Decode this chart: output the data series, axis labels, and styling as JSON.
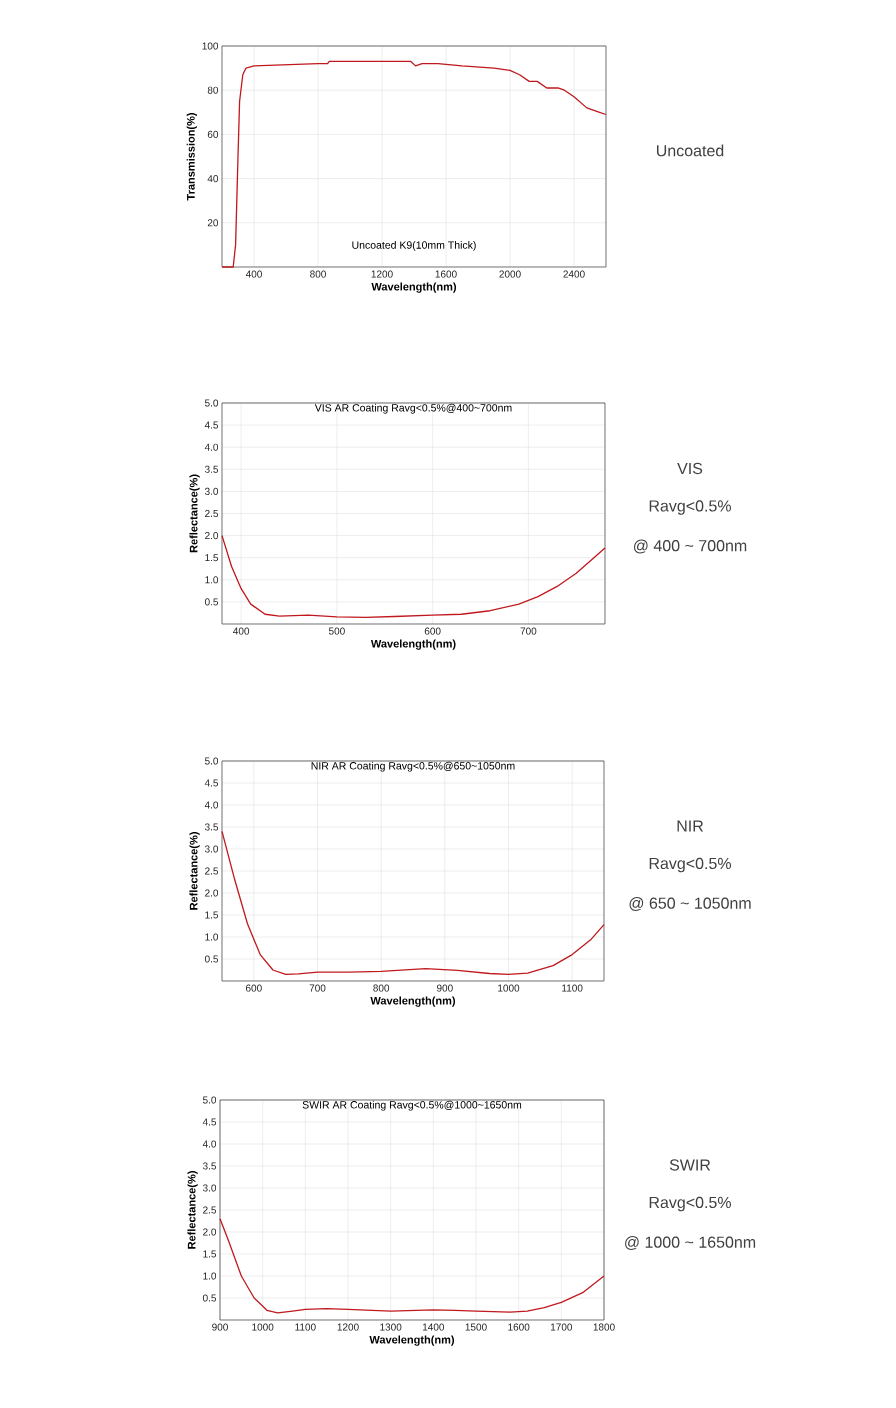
{
  "chart_data": [
    {
      "type": "line",
      "title": "Uncoated K9(10mm Thick)",
      "xlabel": "Wavelength(nm)",
      "ylabel": "Transmission(%)",
      "annotations": [
        "Uncoated"
      ],
      "color": "#c0181d",
      "grid": true,
      "xlim": [
        200,
        2600
      ],
      "xticks": [
        400,
        800,
        1200,
        1600,
        2000,
        2400
      ],
      "ylim": [
        0,
        100
      ],
      "yticks": [
        20,
        40,
        60,
        80,
        100
      ],
      "x": [
        200,
        270,
        285,
        300,
        310,
        330,
        350,
        400,
        800,
        860,
        870,
        1200,
        1380,
        1410,
        1450,
        1550,
        1700,
        1900,
        2000,
        2060,
        2120,
        2170,
        2230,
        2300,
        2340,
        2400,
        2480,
        2560,
        2600
      ],
      "values": [
        0,
        0,
        10,
        50,
        75,
        87,
        90,
        91,
        92,
        92,
        93,
        93,
        93,
        91,
        92,
        92,
        91,
        90,
        89,
        87,
        84,
        84,
        81,
        81,
        80,
        77,
        72,
        70,
        69
      ]
    },
    {
      "type": "line",
      "title": "VIS AR Coating Ravg<0.5%@400~700nm",
      "xlabel": "Wavelength(nm)",
      "ylabel": "Reflectance(%)",
      "annotations": [
        "VIS",
        "Ravg<0.5%",
        "@ 400 ~ 700nm"
      ],
      "color": "#c0181d",
      "grid": true,
      "xlim": [
        380,
        780
      ],
      "xticks": [
        400,
        500,
        600,
        700
      ],
      "ylim": [
        0,
        5
      ],
      "yticks": [
        {
          "value": 0.5,
          "label": "0.5"
        },
        {
          "value": 1,
          "label": "1.0"
        },
        {
          "value": 1.5,
          "label": "1.5"
        },
        {
          "value": 2,
          "label": "2.0"
        },
        {
          "value": 2.5,
          "label": "2.5"
        },
        {
          "value": 3,
          "label": "3.0"
        },
        {
          "value": 3.5,
          "label": "3.5"
        },
        {
          "value": 4,
          "label": "4.0"
        },
        {
          "value": 4.5,
          "label": "4.5"
        },
        {
          "value": 5,
          "label": "5.0"
        }
      ],
      "x": [
        380,
        390,
        400,
        410,
        425,
        440,
        470,
        500,
        530,
        560,
        600,
        630,
        660,
        690,
        710,
        730,
        750,
        780
      ],
      "values": [
        2.0,
        1.3,
        0.8,
        0.45,
        0.22,
        0.18,
        0.2,
        0.16,
        0.15,
        0.17,
        0.2,
        0.22,
        0.3,
        0.45,
        0.62,
        0.85,
        1.15,
        1.72
      ]
    },
    {
      "type": "line",
      "title": "NIR AR Coating Ravg<0.5%@650~1050nm",
      "xlabel": "Wavelength(nm)",
      "ylabel": "Reflectance(%)",
      "annotations": [
        "NIR",
        "Ravg<0.5%",
        "@ 650 ~ 1050nm"
      ],
      "color": "#c0181d",
      "grid": true,
      "xlim": [
        550,
        1150
      ],
      "xticks": [
        600,
        700,
        800,
        900,
        1000,
        1100
      ],
      "ylim": [
        0,
        5
      ],
      "yticks": [
        {
          "value": 0.5,
          "label": "0.5"
        },
        {
          "value": 1,
          "label": "1.0"
        },
        {
          "value": 1.5,
          "label": "1.5"
        },
        {
          "value": 2,
          "label": "2.0"
        },
        {
          "value": 2.5,
          "label": "2.5"
        },
        {
          "value": 3,
          "label": "3.0"
        },
        {
          "value": 3.5,
          "label": "3.5"
        },
        {
          "value": 4,
          "label": "4.0"
        },
        {
          "value": 4.5,
          "label": "4.5"
        },
        {
          "value": 5,
          "label": "5.0"
        }
      ],
      "x": [
        550,
        570,
        590,
        610,
        630,
        650,
        670,
        700,
        750,
        800,
        870,
        920,
        970,
        1000,
        1030,
        1070,
        1100,
        1130,
        1150
      ],
      "values": [
        3.4,
        2.3,
        1.3,
        0.6,
        0.25,
        0.15,
        0.16,
        0.2,
        0.2,
        0.22,
        0.28,
        0.24,
        0.17,
        0.15,
        0.18,
        0.35,
        0.6,
        0.95,
        1.28
      ]
    },
    {
      "type": "line",
      "title": "SWIR AR Coating Ravg<0.5%@1000~1650nm",
      "xlabel": "Wavelength(nm)",
      "ylabel": "Reflectance(%)",
      "annotations": [
        "SWIR",
        "Ravg<0.5%",
        "@ 1000 ~ 1650nm"
      ],
      "color": "#c0181d",
      "grid": true,
      "xlim": [
        900,
        1800
      ],
      "xticks": [
        900,
        1000,
        1100,
        1200,
        1300,
        1400,
        1500,
        1600,
        1700,
        1800
      ],
      "ylim": [
        0,
        5
      ],
      "yticks": [
        {
          "value": 0.5,
          "label": "0.5"
        },
        {
          "value": 1,
          "label": "1.0"
        },
        {
          "value": 1.5,
          "label": "1.5"
        },
        {
          "value": 2,
          "label": "2.0"
        },
        {
          "value": 2.5,
          "label": "2.5"
        },
        {
          "value": 3,
          "label": "3.0"
        },
        {
          "value": 3.5,
          "label": "3.5"
        },
        {
          "value": 4,
          "label": "4.0"
        },
        {
          "value": 4.5,
          "label": "4.5"
        },
        {
          "value": 5,
          "label": "5.0"
        }
      ],
      "x": [
        900,
        920,
        950,
        980,
        1010,
        1035,
        1070,
        1100,
        1150,
        1200,
        1300,
        1400,
        1450,
        1500,
        1580,
        1620,
        1660,
        1700,
        1750,
        1800
      ],
      "values": [
        2.3,
        1.8,
        1.0,
        0.5,
        0.22,
        0.16,
        0.2,
        0.24,
        0.26,
        0.24,
        0.2,
        0.23,
        0.22,
        0.2,
        0.18,
        0.2,
        0.28,
        0.4,
        0.62,
        1.0
      ]
    }
  ]
}
